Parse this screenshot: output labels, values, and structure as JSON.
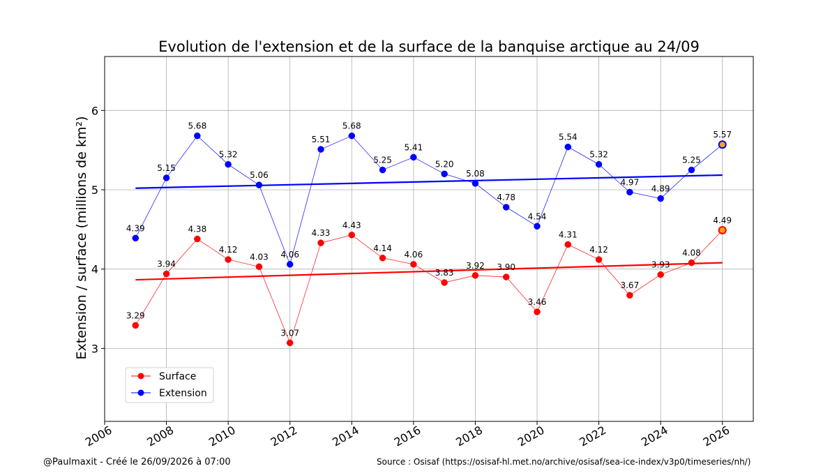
{
  "chart_data": {
    "type": "line",
    "title": "Evolution de l'extension et de la surface de la banquise arctique au 24/09",
    "xlabel": "",
    "ylabel": "Extension / surface (millions de km²)",
    "xlim": [
      2006,
      2027
    ],
    "ylim": [
      2.08,
      6.68
    ],
    "x_ticks": [
      "2006",
      "2008",
      "2010",
      "2012",
      "2014",
      "2016",
      "2018",
      "2020",
      "2022",
      "2024",
      "2026"
    ],
    "y_ticks": [
      "3",
      "4",
      "5",
      "6"
    ],
    "grid": true,
    "legend_position": "lower-left",
    "x": [
      2007,
      2008,
      2009,
      2010,
      2011,
      2012,
      2013,
      2014,
      2015,
      2016,
      2017,
      2018,
      2019,
      2020,
      2021,
      2022,
      2023,
      2024,
      2025,
      2026
    ],
    "series": [
      {
        "name": "Surface",
        "color": "#ff0000",
        "values": [
          3.29,
          3.94,
          4.38,
          4.12,
          4.03,
          3.07,
          4.33,
          4.43,
          4.14,
          4.06,
          3.83,
          3.92,
          3.9,
          3.46,
          4.31,
          4.12,
          3.67,
          3.93,
          4.08,
          4.49
        ],
        "labels": [
          "3.29",
          "3.94",
          "4.38",
          "4.12",
          "4.03",
          "3.07",
          "4.33",
          "4.43",
          "4.14",
          "4.06",
          "3.83",
          "3.92",
          "3.90",
          "3.46",
          "4.31",
          "4.12",
          "3.67",
          "3.93",
          "4.08",
          "4.49"
        ],
        "trend": [
          3.865,
          4.08
        ]
      },
      {
        "name": "Extension",
        "color": "#0000ff",
        "values": [
          4.39,
          5.15,
          5.68,
          5.32,
          5.06,
          4.06,
          5.51,
          5.68,
          5.25,
          5.41,
          5.2,
          5.08,
          4.78,
          4.54,
          5.54,
          5.32,
          4.97,
          4.89,
          5.25,
          5.57
        ],
        "labels": [
          "4.39",
          "5.15",
          "5.68",
          "5.32",
          "5.06",
          "4.06",
          "5.51",
          "5.68",
          "5.25",
          "5.41",
          "5.20",
          "5.08",
          "4.78",
          "4.54",
          "5.54",
          "5.32",
          "4.97",
          "4.89",
          "5.25",
          "5.57"
        ],
        "trend": [
          5.02,
          5.185
        ]
      }
    ],
    "highlight_color": "#ffa500"
  },
  "footer": {
    "credit": "@Paulmaxit - Créé le 26/09/2026 à 07:00",
    "source": "Source : Osisaf (https://osisaf-hl.met.no/archive/osisaf/sea-ice-index/v3p0/timeseries/nh/)"
  }
}
